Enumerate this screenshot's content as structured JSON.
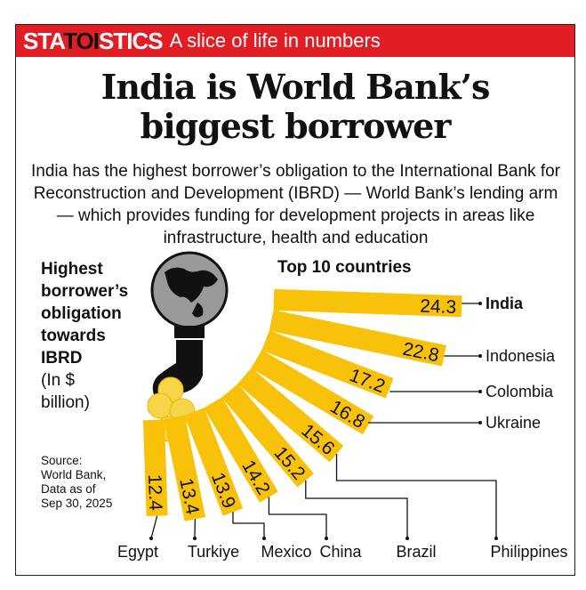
{
  "banner": {
    "brand_a": "STA",
    "brand_b": "TOI",
    "brand_c": "STICS",
    "tagline": "A slice of life in numbers"
  },
  "title_line1": "India is World Bank’s",
  "title_line2": "biggest borrower",
  "subtitle": "India has the highest borrower’s obligation to the International Bank for Reconstruction and Development (IBRD) — World Bank’s lending arm — which provides funding for development projects in areas like infrastructure, health and education",
  "side_label": {
    "bold": [
      "Highest",
      "borrower’s",
      "obligation",
      "towards",
      "IBRD"
    ],
    "unit": [
      "(In $",
      "billion)"
    ]
  },
  "source": [
    "Source:",
    "World Bank,",
    "Data as of",
    "Sep 30, 2025"
  ],
  "colors": {
    "banner": "#e31d24",
    "bar": "#f9c20a",
    "coin": "#f7d54a",
    "globe": "#9a9a9a",
    "ink": "#111111"
  },
  "chart_data": {
    "type": "bar",
    "subtitle": "Top 10 countries",
    "unit": "$ billion",
    "categories": [
      "India",
      "Indonesia",
      "Colombia",
      "Ukraine",
      "Philippines",
      "Brazil",
      "China",
      "Mexico",
      "Turkiye",
      "Egypt"
    ],
    "values": [
      24.3,
      22.8,
      17.2,
      16.8,
      15.6,
      15.2,
      14.2,
      13.9,
      13.4,
      12.4
    ],
    "labels": [
      "24.3",
      "22.8",
      "17.2",
      "16.8",
      "15.6",
      "15.2",
      "14.2",
      "13.9",
      "13.4",
      "12.4"
    ],
    "highlight": "India",
    "layout": "radial fan"
  }
}
